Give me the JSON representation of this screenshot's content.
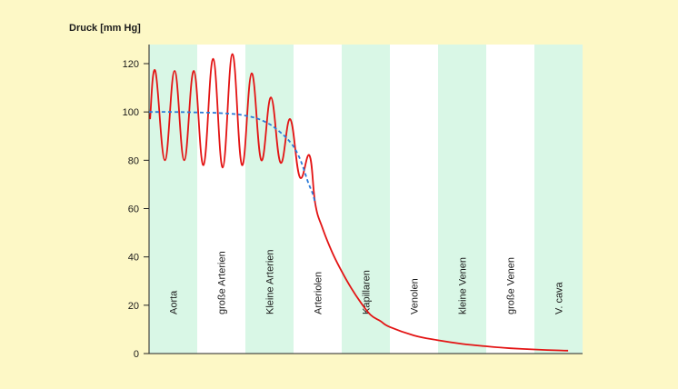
{
  "chart_data": {
    "type": "line",
    "title": "",
    "xlabel": "",
    "ylabel": "Druck [mm Hg]",
    "ylim": [
      0,
      120
    ],
    "yticks": [
      0,
      20,
      40,
      60,
      80,
      100,
      120
    ],
    "grid": false,
    "band_colors": [
      "#d9f7e6",
      "#ffffff"
    ],
    "series_colors": {
      "pulsatile": "#e31414",
      "mean": "#2a7ad9"
    },
    "segments": [
      "Aorta",
      "große Arterien",
      "Kleine Arterien",
      "Arteriolen",
      "Kapillaren",
      "Venolen",
      "kleine Venen",
      "große Venen",
      "V. cava"
    ],
    "series": [
      {
        "style": "solid",
        "peaks": [
          {
            "x": 0.13,
            "y": 117
          },
          {
            "x": 0.53,
            "y": 117
          },
          {
            "x": 0.93,
            "y": 117
          },
          {
            "x": 1.33,
            "y": 122
          },
          {
            "x": 1.73,
            "y": 124
          },
          {
            "x": 2.13,
            "y": 116
          },
          {
            "x": 2.53,
            "y": 106
          },
          {
            "x": 2.93,
            "y": 97
          },
          {
            "x": 3.33,
            "y": 82
          }
        ],
        "troughs": [
          {
            "x": 0.33,
            "y": 80
          },
          {
            "x": 0.73,
            "y": 80
          },
          {
            "x": 1.13,
            "y": 78
          },
          {
            "x": 1.53,
            "y": 77
          },
          {
            "x": 1.93,
            "y": 78
          },
          {
            "x": 2.33,
            "y": 80
          },
          {
            "x": 2.73,
            "y": 79
          },
          {
            "x": 3.13,
            "y": 73
          }
        ],
        "values": [
          {
            "x": 3.45,
            "y": 62
          },
          {
            "x": 3.6,
            "y": 52
          },
          {
            "x": 3.8,
            "y": 42
          },
          {
            "x": 4.0,
            "y": 34
          },
          {
            "x": 4.2,
            "y": 27
          },
          {
            "x": 4.4,
            "y": 21
          },
          {
            "x": 4.6,
            "y": 16
          },
          {
            "x": 4.8,
            "y": 13.5
          },
          {
            "x": 5.0,
            "y": 11
          },
          {
            "x": 5.5,
            "y": 7.5
          },
          {
            "x": 6.0,
            "y": 5.5
          },
          {
            "x": 6.5,
            "y": 4
          },
          {
            "x": 7.0,
            "y": 3
          },
          {
            "x": 7.5,
            "y": 2.2
          },
          {
            "x": 8.0,
            "y": 1.7
          },
          {
            "x": 8.5,
            "y": 1.3
          },
          {
            "x": 8.7,
            "y": 1.2
          }
        ]
      },
      {
        "style": "dashed",
        "values": [
          {
            "x": 0,
            "y": 100
          },
          {
            "x": 0.5,
            "y": 100
          },
          {
            "x": 1.0,
            "y": 99.8
          },
          {
            "x": 1.5,
            "y": 99.5
          },
          {
            "x": 2.0,
            "y": 98.5
          },
          {
            "x": 2.4,
            "y": 96
          },
          {
            "x": 2.7,
            "y": 92
          },
          {
            "x": 2.95,
            "y": 87
          },
          {
            "x": 3.1,
            "y": 82
          },
          {
            "x": 3.2,
            "y": 77
          },
          {
            "x": 3.3,
            "y": 71
          },
          {
            "x": 3.4,
            "y": 66
          },
          {
            "x": 3.45,
            "y": 62
          }
        ]
      }
    ]
  }
}
